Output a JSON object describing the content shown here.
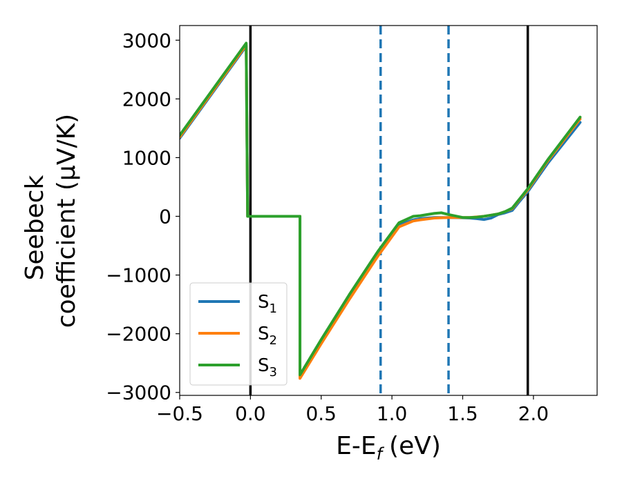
{
  "chart_data": {
    "type": "line",
    "xlabel": "E-E",
    "xlabel_sub": "f",
    "xlabel_unit": "(eV)",
    "ylabel_line1": "Seebeck",
    "ylabel_line2": "coefficient  (μV/K)",
    "xlim": [
      -0.5,
      2.45
    ],
    "ylim": [
      -3050,
      3250
    ],
    "x_ticks": [
      -0.5,
      0.0,
      0.5,
      1.0,
      1.5,
      2.0
    ],
    "x_tick_labels": [
      "−0.5",
      "0.0",
      "0.5",
      "1.0",
      "1.5",
      "2.0"
    ],
    "y_ticks": [
      -3000,
      -2000,
      -1000,
      0,
      1000,
      2000,
      3000
    ],
    "y_tick_labels": [
      "−3000",
      "−2000",
      "−1000",
      "0",
      "1000",
      "2000",
      "3000"
    ],
    "grid": false,
    "legend_position": "lower-left",
    "vlines": [
      {
        "x": 0.0,
        "style": "solid",
        "color": "#000000"
      },
      {
        "x": 1.96,
        "style": "solid",
        "color": "#000000"
      },
      {
        "x": 0.92,
        "style": "dashed",
        "color": "#1f77b4"
      },
      {
        "x": 1.4,
        "style": "dashed",
        "color": "#1f77b4"
      }
    ],
    "series": [
      {
        "name": "S",
        "sub": "1",
        "color": "#1f77b4",
        "x": [
          -0.5,
          -0.03,
          -0.02,
          0.0,
          0.35,
          0.35,
          0.5,
          0.7,
          0.9,
          1.05,
          1.15,
          1.2,
          1.3,
          1.4,
          1.5,
          1.55,
          1.6,
          1.65,
          1.7,
          1.75,
          1.8,
          1.85,
          1.9,
          1.96,
          2.1,
          2.33
        ],
        "y": [
          1330,
          2900,
          0,
          0,
          0,
          -2730,
          -2140,
          -1380,
          -650,
          -150,
          -60,
          -40,
          -20,
          -20,
          -25,
          -30,
          -40,
          -55,
          -30,
          30,
          60,
          100,
          250,
          420,
          900,
          1600
        ]
      },
      {
        "name": "S",
        "sub": "2",
        "color": "#ff7f0e",
        "x": [
          -0.5,
          -0.03,
          -0.02,
          0.0,
          0.35,
          0.35,
          0.5,
          0.7,
          0.9,
          1.05,
          1.15,
          1.2,
          1.3,
          1.4,
          1.5,
          1.55,
          1.6,
          1.65,
          1.7,
          1.75,
          1.8,
          1.85,
          1.9,
          1.96,
          2.1,
          2.33
        ],
        "y": [
          1350,
          2920,
          0,
          0,
          0,
          -2760,
          -2170,
          -1410,
          -680,
          -180,
          -80,
          -60,
          -30,
          -20,
          -20,
          -20,
          -10,
          0,
          20,
          40,
          80,
          130,
          280,
          450,
          940,
          1660
        ]
      },
      {
        "name": "S",
        "sub": "3",
        "color": "#2ca02c",
        "x": [
          -0.5,
          -0.03,
          -0.02,
          0.0,
          0.35,
          0.35,
          0.5,
          0.7,
          0.9,
          1.05,
          1.15,
          1.2,
          1.3,
          1.35,
          1.4,
          1.5,
          1.55,
          1.6,
          1.65,
          1.7,
          1.75,
          1.8,
          1.85,
          1.9,
          1.96,
          2.1,
          2.33
        ],
        "y": [
          1380,
          2950,
          0,
          0,
          0,
          -2700,
          -2100,
          -1330,
          -600,
          -110,
          0,
          10,
          50,
          60,
          30,
          -20,
          -20,
          -15,
          0,
          20,
          40,
          80,
          140,
          290,
          470,
          960,
          1690
        ]
      }
    ]
  }
}
